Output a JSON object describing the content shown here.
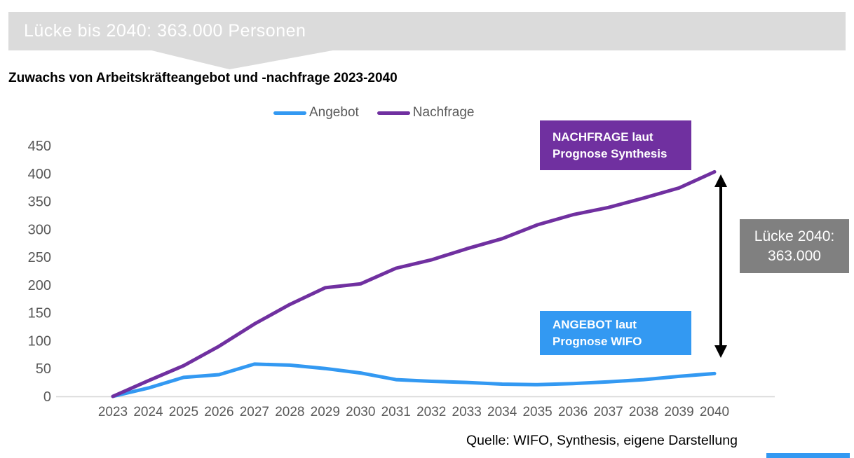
{
  "banner": {
    "text": "Lücke bis 2040: 363.000 Personen"
  },
  "title": "Zuwachs von Arbeitskräfteangebot und -nachfrage 2023-2040",
  "legend": {
    "items": [
      {
        "label": "Angebot"
      },
      {
        "label": "Nachfrage"
      }
    ]
  },
  "annotations": {
    "nachfrage_box": {
      "line1": "NACHFRAGE laut",
      "line2": "Prognose Synthesis"
    },
    "angebot_box": {
      "line1": "ANGEBOT laut",
      "line2": "Prognose WIFO"
    },
    "gap_box": {
      "line1": "Lücke 2040:",
      "line2": "363.000"
    }
  },
  "source": "Quelle: WIFO, Synthesis, eigene Darstellung",
  "colors": {
    "angebot": "#3399F2",
    "nachfrage": "#7030A0",
    "banner_bg": "#DBDBDB",
    "gap_box_bg": "#808080",
    "axis_line": "#D6D6D6",
    "tick_text": "#595959",
    "arrow": "#000000",
    "footer_bar": "#3399F2"
  },
  "chart_data": {
    "type": "line",
    "title": "Zuwachs von Arbeitskräfteangebot und -nachfrage 2023-2040",
    "categories": [
      2023,
      2024,
      2025,
      2026,
      2027,
      2028,
      2029,
      2030,
      2031,
      2032,
      2033,
      2034,
      2035,
      2036,
      2037,
      2038,
      2039,
      2040
    ],
    "series": [
      {
        "name": "Angebot",
        "color": "#3399F2",
        "values": [
          0,
          15,
          34,
          39,
          58,
          56,
          50,
          42,
          30,
          27,
          25,
          22,
          21,
          23,
          26,
          30,
          36,
          41
        ]
      },
      {
        "name": "Nachfrage",
        "color": "#7030A0",
        "values": [
          0,
          28,
          55,
          90,
          130,
          165,
          195,
          202,
          230,
          245,
          265,
          283,
          308,
          326,
          339,
          356,
          374,
          403
        ]
      }
    ],
    "xlabel": "",
    "ylabel": "",
    "ylim": [
      0,
      450
    ],
    "ytick_step": 50,
    "grid": false,
    "legend_position": "top",
    "annotation_gap_2040": 363
  }
}
